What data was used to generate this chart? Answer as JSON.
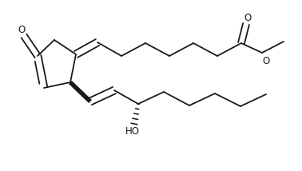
{
  "bg": "#ffffff",
  "lc": "#1a1a1a",
  "lw": 1.3,
  "blw": 4.0,
  "fs": 8.5,
  "xlim": [
    0,
    378
  ],
  "ylim": [
    0,
    214
  ]
}
